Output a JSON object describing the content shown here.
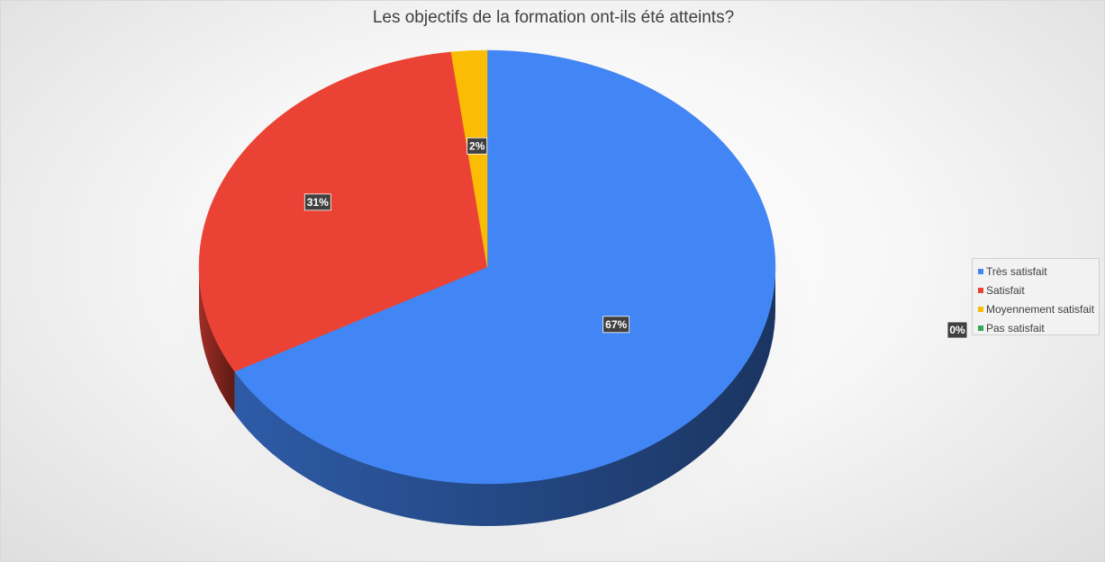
{
  "chart_data": {
    "type": "pie",
    "title": "Les objectifs de la formation ont-ils été atteints?",
    "style": "3d",
    "legend_position": "right",
    "categories": [
      "Très satisfait",
      "Satisfait",
      "Moyennement satisfait",
      "Pas satisfait"
    ],
    "values": [
      67,
      31,
      2,
      0
    ],
    "labels": [
      "67%",
      "31%",
      "2%",
      "0%"
    ],
    "colors": [
      "#4285f4",
      "#ea4335",
      "#fbbc04",
      "#34a853"
    ]
  }
}
